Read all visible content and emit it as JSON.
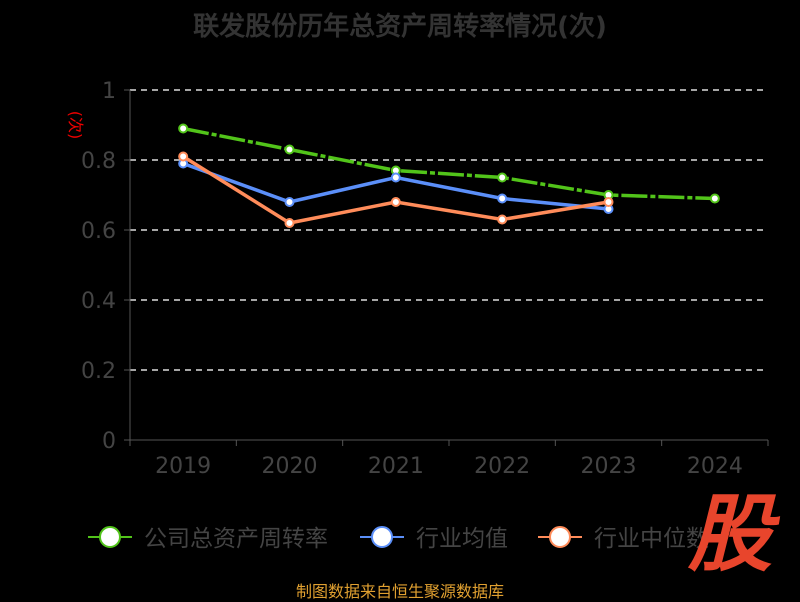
{
  "chart_data": {
    "type": "line",
    "title": "联发股份历年总资产周转率情况(次)",
    "ylabel": "(次)",
    "xlabel": "",
    "categories": [
      "2019",
      "2020",
      "2021",
      "2022",
      "2023",
      "2024"
    ],
    "ylim": [
      0,
      1
    ],
    "yticks": [
      "0",
      "0.2",
      "0.4",
      "0.6",
      "0.8",
      "1"
    ],
    "grid": true,
    "legend_position": "bottom",
    "series": [
      {
        "name": "公司总资产周转率",
        "color": "#52c41a",
        "values": [
          0.89,
          0.83,
          0.77,
          0.75,
          0.7,
          0.69
        ]
      },
      {
        "name": "行业均值",
        "color": "#5b8ff9",
        "values": [
          0.79,
          0.68,
          0.75,
          0.69,
          0.66,
          null
        ]
      },
      {
        "name": "行业中位数",
        "color": "#ff8c5a",
        "values": [
          0.81,
          0.62,
          0.68,
          0.63,
          0.68,
          null
        ]
      }
    ]
  },
  "source": "制图数据来自恒生聚源数据库",
  "logo": "股"
}
